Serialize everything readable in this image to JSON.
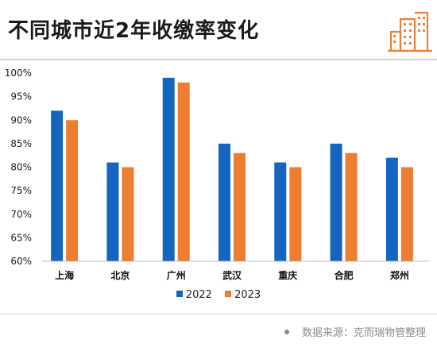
{
  "title": "不同城市近2年收缴率变化",
  "colors": {
    "2022": "#1565c0",
    "2023": "#ed7d31",
    "logo": "#e8823a"
  },
  "source": "数据来源：克而瑞物管整理",
  "logo_icon": "buildings-icon",
  "chart_data": {
    "type": "bar",
    "categories": [
      "上海",
      "北京",
      "广州",
      "武汉",
      "重庆",
      "合肥",
      "郑州"
    ],
    "series": [
      {
        "name": "2022",
        "values": [
          92,
          81,
          99,
          85,
          81,
          85,
          82
        ]
      },
      {
        "name": "2023",
        "values": [
          90,
          80,
          98,
          83,
          80,
          83,
          80
        ]
      }
    ],
    "ylim": [
      60,
      100
    ],
    "yticks": [
      "100%",
      "95%",
      "90%",
      "85%",
      "80%",
      "75%",
      "70%",
      "65%",
      "60%"
    ],
    "ytick_values": [
      100,
      95,
      90,
      85,
      80,
      75,
      70,
      65,
      60
    ],
    "legend": "bottom-center",
    "grid": false
  }
}
